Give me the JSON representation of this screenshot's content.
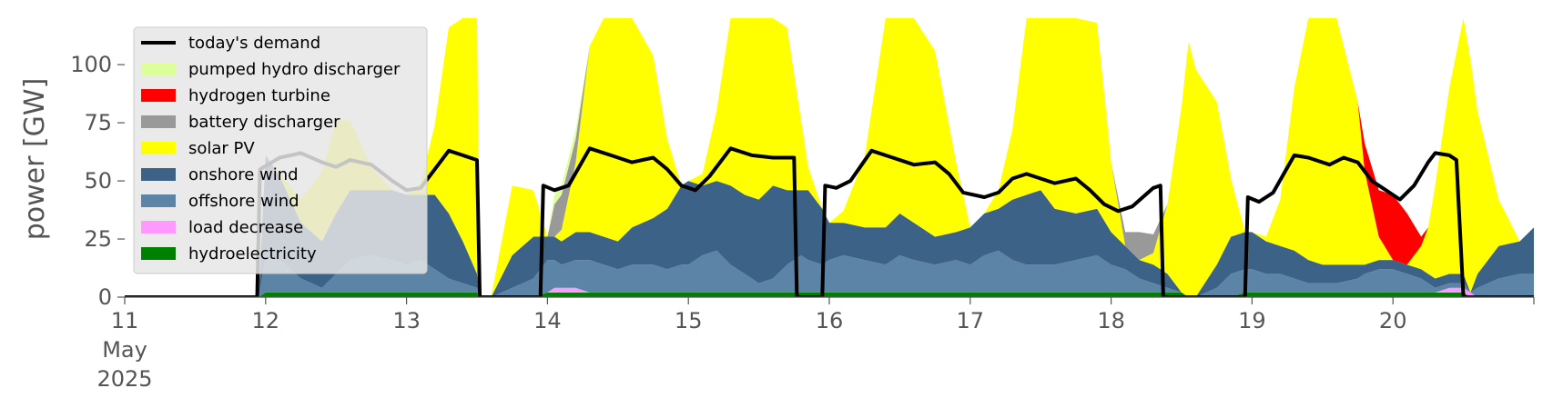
{
  "chart_data": {
    "type": "area",
    "ylabel": "power [GW]",
    "xlabel": "",
    "ylim": [
      0,
      120
    ],
    "xlim": [
      "2025-05-11",
      "2025-05-21"
    ],
    "x_ticks": [
      {
        "day": 0,
        "lines": [
          "11",
          "May",
          "2025"
        ]
      },
      {
        "day": 1,
        "lines": [
          "12"
        ]
      },
      {
        "day": 2,
        "lines": [
          "13"
        ]
      },
      {
        "day": 3,
        "lines": [
          "14"
        ]
      },
      {
        "day": 4,
        "lines": [
          "15"
        ]
      },
      {
        "day": 5,
        "lines": [
          "16"
        ]
      },
      {
        "day": 6,
        "lines": [
          "17"
        ]
      },
      {
        "day": 7,
        "lines": [
          "18"
        ]
      },
      {
        "day": 8,
        "lines": [
          "19"
        ]
      },
      {
        "day": 9,
        "lines": [
          "20"
        ]
      }
    ],
    "y_ticks": [
      0,
      25,
      50,
      75,
      100
    ],
    "legend_position": "upper-left",
    "grid": false,
    "x": [
      0,
      0.5,
      0.95,
      1.0,
      1.1,
      1.25,
      1.4,
      1.5,
      1.6,
      1.75,
      1.9,
      2.0,
      2.1,
      2.2,
      2.3,
      2.4,
      2.5,
      2.52,
      2.6,
      2.75,
      2.9,
      3.0,
      3.05,
      3.1,
      3.2,
      3.3,
      3.4,
      3.5,
      3.6,
      3.75,
      3.85,
      3.95,
      4.0,
      4.1,
      4.2,
      4.3,
      4.4,
      4.5,
      4.6,
      4.7,
      4.8,
      4.85,
      4.95,
      5.0,
      5.1,
      5.25,
      5.4,
      5.5,
      5.6,
      5.75,
      5.9,
      6.0,
      6.1,
      6.2,
      6.3,
      6.4,
      6.5,
      6.6,
      6.75,
      6.9,
      7.0,
      7.1,
      7.2,
      7.3,
      7.4,
      7.5,
      7.55,
      7.6,
      7.75,
      7.85,
      7.95,
      8.0,
      8.1,
      8.2,
      8.3,
      8.4,
      8.5,
      8.6,
      8.75,
      8.8,
      8.9,
      9.0,
      9.1,
      9.2,
      9.25,
      9.3,
      9.4,
      9.5,
      9.55,
      9.6,
      9.75,
      9.9,
      10.0
    ],
    "series": [
      {
        "name": "hydroelectricity",
        "color": "#008000",
        "values": [
          0,
          0,
          0,
          2,
          2,
          2,
          2,
          2,
          2,
          2,
          2,
          2,
          2,
          2,
          2,
          2,
          2,
          0,
          0,
          0,
          0,
          2,
          2,
          2,
          2,
          2,
          2,
          2,
          2,
          2,
          2,
          2,
          2,
          2,
          2,
          2,
          2,
          2,
          2,
          2,
          2,
          2,
          2,
          2,
          2,
          2,
          2,
          2,
          2,
          2,
          2,
          2,
          2,
          2,
          2,
          2,
          2,
          2,
          2,
          2,
          2,
          2,
          2,
          2,
          2,
          2,
          0,
          0,
          0,
          0,
          2,
          2,
          2,
          2,
          2,
          2,
          2,
          2,
          2,
          2,
          2,
          2,
          2,
          2,
          2,
          2,
          2,
          2,
          0,
          0,
          0,
          0,
          0
        ]
      },
      {
        "name": "load decrease",
        "color": "#ff99ff",
        "values": [
          0,
          0,
          0,
          0,
          0,
          0,
          0,
          0,
          0,
          0,
          0,
          0,
          0,
          0,
          0,
          0,
          0,
          0,
          0,
          0,
          0,
          0,
          2,
          2,
          2,
          0,
          0,
          0,
          0,
          0,
          0,
          0,
          0,
          0,
          0,
          0,
          0,
          0,
          0,
          0,
          0,
          0,
          0,
          0,
          0,
          0,
          0,
          0,
          0,
          0,
          0,
          0,
          0,
          0,
          0,
          0,
          0,
          0,
          0,
          0,
          0,
          0,
          0,
          0,
          0,
          0,
          0,
          0,
          0,
          0,
          0,
          0,
          0,
          0,
          0,
          0,
          0,
          0,
          0,
          0,
          0,
          0,
          0,
          0,
          0,
          0,
          2,
          2,
          2,
          0,
          0,
          0,
          0
        ]
      },
      {
        "name": "offshore wind",
        "color": "#5b84a6",
        "values": [
          0,
          0,
          0,
          15,
          14,
          6,
          2,
          8,
          14,
          16,
          14,
          12,
          14,
          10,
          6,
          4,
          2,
          0,
          0,
          4,
          8,
          14,
          12,
          10,
          12,
          14,
          12,
          10,
          12,
          12,
          10,
          12,
          12,
          16,
          18,
          12,
          8,
          4,
          6,
          12,
          16,
          14,
          12,
          14,
          16,
          14,
          12,
          16,
          14,
          12,
          14,
          12,
          16,
          18,
          14,
          12,
          12,
          12,
          14,
          16,
          12,
          10,
          6,
          4,
          2,
          0,
          0,
          0,
          4,
          10,
          10,
          10,
          8,
          8,
          6,
          4,
          4,
          4,
          6,
          8,
          10,
          10,
          8,
          6,
          4,
          2,
          2,
          2,
          0,
          4,
          8,
          10,
          10
        ]
      },
      {
        "name": "onshore wind",
        "color": "#3d6287",
        "values": [
          0,
          0,
          0,
          44,
          36,
          24,
          20,
          26,
          30,
          28,
          30,
          30,
          28,
          32,
          28,
          18,
          6,
          0,
          0,
          14,
          18,
          10,
          10,
          10,
          12,
          12,
          12,
          12,
          16,
          20,
          26,
          34,
          36,
          30,
          30,
          34,
          34,
          36,
          40,
          32,
          28,
          30,
          24,
          16,
          14,
          14,
          16,
          18,
          16,
          12,
          12,
          16,
          18,
          18,
          26,
          30,
          32,
          24,
          20,
          20,
          14,
          10,
          8,
          8,
          6,
          0,
          0,
          0,
          10,
          16,
          16,
          16,
          14,
          12,
          12,
          10,
          8,
          8,
          6,
          4,
          4,
          4,
          4,
          4,
          4,
          4,
          4,
          4,
          0,
          6,
          14,
          14,
          20
        ]
      },
      {
        "name": "solar PV",
        "color": "#ffff00",
        "values": [
          0,
          0,
          0,
          0,
          1,
          10,
          30,
          40,
          30,
          10,
          0,
          0,
          5,
          30,
          80,
          120,
          120,
          0,
          0,
          30,
          20,
          0,
          0,
          5,
          30,
          80,
          120,
          120,
          110,
          70,
          30,
          0,
          0,
          5,
          30,
          80,
          120,
          120,
          110,
          70,
          30,
          10,
          0,
          0,
          5,
          30,
          90,
          120,
          115,
          80,
          30,
          0,
          0,
          8,
          30,
          80,
          120,
          120,
          110,
          80,
          30,
          0,
          0,
          5,
          30,
          80,
          110,
          98,
          70,
          25,
          0,
          0,
          2,
          20,
          70,
          110,
          120,
          110,
          70,
          40,
          10,
          0,
          0,
          10,
          20,
          40,
          80,
          120,
          100,
          70,
          20,
          0,
          0
        ]
      },
      {
        "name": "battery discharger",
        "color": "#999999",
        "values": [
          0,
          0,
          0,
          0,
          0,
          0,
          0,
          0,
          0,
          0,
          0,
          0,
          0,
          0,
          0,
          0,
          0,
          0,
          0,
          0,
          0,
          0,
          14,
          15,
          10,
          0,
          0,
          0,
          0,
          0,
          0,
          0,
          0,
          0,
          0,
          0,
          0,
          0,
          0,
          0,
          0,
          0,
          0,
          0,
          0,
          0,
          0,
          0,
          0,
          0,
          0,
          0,
          0,
          0,
          0,
          0,
          0,
          0,
          0,
          0,
          0,
          6,
          12,
          8,
          0,
          0,
          0,
          0,
          0,
          0,
          0,
          0,
          0,
          0,
          0,
          0,
          0,
          0,
          0,
          0,
          0,
          0,
          0,
          0,
          0,
          0,
          0,
          0,
          0,
          0,
          0,
          0,
          0
        ]
      },
      {
        "name": "hydrogen turbine",
        "color": "#ff0000",
        "values": [
          0,
          0,
          0,
          0,
          0,
          0,
          0,
          0,
          0,
          0,
          0,
          0,
          0,
          0,
          0,
          0,
          0,
          0,
          0,
          0,
          0,
          0,
          0,
          0,
          0,
          0,
          0,
          0,
          0,
          0,
          0,
          0,
          0,
          0,
          0,
          0,
          0,
          0,
          0,
          0,
          0,
          0,
          0,
          0,
          0,
          0,
          0,
          0,
          0,
          0,
          0,
          0,
          0,
          0,
          0,
          0,
          0,
          0,
          0,
          0,
          0,
          0,
          0,
          0,
          0,
          0,
          0,
          0,
          0,
          0,
          0,
          0,
          0,
          0,
          0,
          0,
          0,
          0,
          0,
          12,
          20,
          28,
          22,
          4,
          0,
          0,
          0,
          0,
          0,
          0,
          0,
          0,
          0
        ]
      },
      {
        "name": "pumped hydro discharger",
        "color": "#ddff99",
        "values": [
          0,
          0,
          0,
          0,
          0,
          0,
          0,
          0,
          0,
          0,
          0,
          0,
          0,
          0,
          0,
          0,
          0,
          0,
          0,
          0,
          0,
          0,
          4,
          4,
          4,
          0,
          0,
          0,
          0,
          0,
          0,
          0,
          0,
          0,
          0,
          0,
          0,
          0,
          0,
          0,
          0,
          0,
          0,
          0,
          0,
          0,
          0,
          0,
          0,
          0,
          0,
          0,
          0,
          0,
          0,
          0,
          0,
          0,
          0,
          0,
          0,
          0,
          0,
          0,
          0,
          0,
          0,
          0,
          0,
          0,
          0,
          0,
          0,
          0,
          0,
          0,
          0,
          0,
          0,
          0,
          0,
          0,
          0,
          0,
          0,
          0,
          0,
          0,
          0,
          0,
          0,
          0,
          0
        ]
      }
    ],
    "demand": {
      "name": "today's demand",
      "color": "#000000",
      "points": [
        [
          0,
          0
        ],
        [
          0.94,
          0
        ],
        [
          0.96,
          55
        ],
        [
          1.1,
          60
        ],
        [
          1.25,
          62
        ],
        [
          1.4,
          58
        ],
        [
          1.5,
          56
        ],
        [
          1.6,
          59
        ],
        [
          1.75,
          57
        ],
        [
          1.9,
          50
        ],
        [
          2.0,
          46
        ],
        [
          2.1,
          47
        ],
        [
          2.2,
          55
        ],
        [
          2.3,
          63
        ],
        [
          2.4,
          61
        ],
        [
          2.5,
          59
        ],
        [
          2.52,
          0
        ],
        [
          2.95,
          0
        ],
        [
          2.97,
          48
        ],
        [
          3.05,
          46
        ],
        [
          3.15,
          48
        ],
        [
          3.3,
          64
        ],
        [
          3.45,
          61
        ],
        [
          3.6,
          58
        ],
        [
          3.75,
          60
        ],
        [
          3.85,
          55
        ],
        [
          3.95,
          48
        ],
        [
          4.05,
          46
        ],
        [
          4.15,
          52
        ],
        [
          4.3,
          64
        ],
        [
          4.45,
          61
        ],
        [
          4.6,
          60
        ],
        [
          4.75,
          60
        ],
        [
          4.77,
          0
        ],
        [
          4.95,
          0
        ],
        [
          4.97,
          48
        ],
        [
          5.05,
          47
        ],
        [
          5.15,
          50
        ],
        [
          5.3,
          63
        ],
        [
          5.45,
          60
        ],
        [
          5.6,
          57
        ],
        [
          5.75,
          58
        ],
        [
          5.85,
          53
        ],
        [
          5.95,
          45
        ],
        [
          6.1,
          43
        ],
        [
          6.2,
          45
        ],
        [
          6.3,
          51
        ],
        [
          6.4,
          53
        ],
        [
          6.5,
          51
        ],
        [
          6.6,
          49
        ],
        [
          6.75,
          51
        ],
        [
          6.85,
          46
        ],
        [
          6.95,
          40
        ],
        [
          7.05,
          37
        ],
        [
          7.15,
          39
        ],
        [
          7.3,
          47
        ],
        [
          7.35,
          48
        ],
        [
          7.37,
          0
        ],
        [
          7.95,
          0
        ],
        [
          7.97,
          43
        ],
        [
          8.05,
          41
        ],
        [
          8.15,
          45
        ],
        [
          8.3,
          61
        ],
        [
          8.4,
          60
        ],
        [
          8.55,
          57
        ],
        [
          8.65,
          60
        ],
        [
          8.75,
          58
        ],
        [
          8.85,
          50
        ],
        [
          8.95,
          46
        ],
        [
          9.05,
          42
        ],
        [
          9.15,
          48
        ],
        [
          9.25,
          58
        ],
        [
          9.3,
          62
        ],
        [
          9.4,
          61
        ],
        [
          9.45,
          59
        ],
        [
          9.5,
          0
        ],
        [
          10.0,
          0
        ]
      ]
    },
    "legend": [
      {
        "label": "today's demand",
        "kind": "line",
        "color": "#000000"
      },
      {
        "label": "pumped hydro discharger",
        "kind": "patch",
        "color": "#ddff99"
      },
      {
        "label": "hydrogen turbine",
        "kind": "patch",
        "color": "#ff0000"
      },
      {
        "label": "battery discharger",
        "kind": "patch",
        "color": "#999999"
      },
      {
        "label": "solar PV",
        "kind": "patch",
        "color": "#ffff00"
      },
      {
        "label": "onshore wind",
        "kind": "patch",
        "color": "#3d6287"
      },
      {
        "label": "offshore wind",
        "kind": "patch",
        "color": "#5b84a6"
      },
      {
        "label": "load decrease",
        "kind": "patch",
        "color": "#ff99ff"
      },
      {
        "label": "hydroelectricity",
        "kind": "patch",
        "color": "#008000"
      }
    ]
  }
}
